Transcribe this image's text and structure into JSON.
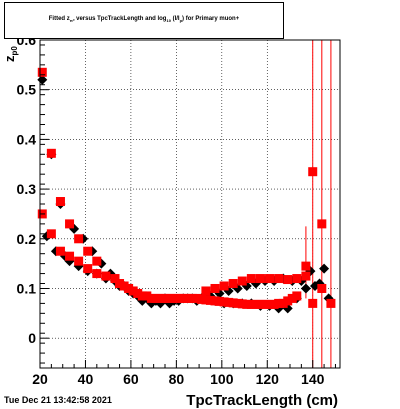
{
  "chart_data": {
    "type": "scatter",
    "title": "Fitted z_{p0} versus TpcTrackLength and log_{10}(I/I_p) for Primary muon+",
    "title_parts": {
      "pre": "Fitted  z",
      "sub1": "π⁰",
      "mid": "  versus TpcTrackLength and log",
      "sub2": "10",
      "post": " (I/I",
      "sub3": "p",
      "end": ") for Primary muon+"
    },
    "xlabel": "TpcTrackLength (cm)",
    "ylabel": "z",
    "ylabel_sub": "p0",
    "xlim": [
      20,
      152
    ],
    "ylim": [
      -0.06,
      0.6
    ],
    "x_ticks": [
      20,
      40,
      60,
      80,
      100,
      120,
      140
    ],
    "y_ticks": [
      0,
      0.1,
      0.2,
      0.3,
      0.4,
      0.5,
      0.6
    ],
    "y_tick_labels": [
      "0",
      "0.1",
      "0.2",
      "0.3",
      "0.4",
      "0.5",
      "0.6"
    ],
    "grid": true,
    "series": [
      {
        "color": "#000000",
        "marker": "diamond",
        "points": [
          [
            21,
            0.52
          ],
          [
            23,
            0.205
          ],
          [
            25,
            0.37
          ],
          [
            27,
            0.175
          ],
          [
            29,
            0.27
          ],
          [
            31,
            0.165
          ],
          [
            33,
            0.155
          ],
          [
            35,
            0.22
          ],
          [
            37,
            0.145
          ],
          [
            39,
            0.2
          ],
          [
            41,
            0.135
          ],
          [
            43,
            0.175
          ],
          [
            45,
            0.13
          ],
          [
            47,
            0.15
          ],
          [
            49,
            0.12
          ],
          [
            51,
            0.13
          ],
          [
            53,
            0.115
          ],
          [
            55,
            0.105
          ],
          [
            57,
            0.105
          ],
          [
            59,
            0.095
          ],
          [
            61,
            0.09
          ],
          [
            63,
            0.085
          ],
          [
            65,
            0.075
          ],
          [
            67,
            0.08
          ],
          [
            69,
            0.07
          ],
          [
            71,
            0.075
          ],
          [
            73,
            0.07
          ],
          [
            75,
            0.08
          ],
          [
            77,
            0.07
          ],
          [
            79,
            0.075
          ],
          [
            81,
            0.075
          ],
          [
            83,
            0.08
          ],
          [
            85,
            0.08
          ],
          [
            87,
            0.08
          ],
          [
            89,
            0.075
          ],
          [
            91,
            0.08
          ],
          [
            93,
            0.08
          ],
          [
            95,
            0.085
          ],
          [
            97,
            0.075
          ],
          [
            99,
            0.09
          ],
          [
            101,
            0.07
          ],
          [
            103,
            0.095
          ],
          [
            105,
            0.07
          ],
          [
            107,
            0.1
          ],
          [
            109,
            0.07
          ],
          [
            111,
            0.105
          ],
          [
            113,
            0.07
          ],
          [
            115,
            0.11
          ],
          [
            117,
            0.065
          ],
          [
            119,
            0.115
          ],
          [
            121,
            0.065
          ],
          [
            123,
            0.115
          ],
          [
            125,
            0.06
          ],
          [
            127,
            0.12
          ],
          [
            129,
            0.06
          ],
          [
            131,
            0.115
          ],
          [
            133,
            0.08
          ],
          [
            135,
            0.115
          ],
          [
            137,
            0.1
          ],
          [
            139,
            0.135
          ],
          [
            141,
            0.105
          ],
          [
            143,
            0.11
          ],
          [
            145,
            0.14
          ],
          [
            147,
            0.08
          ]
        ]
      },
      {
        "color": "#ff0000",
        "marker": "square",
        "points": [
          [
            21,
            0.535
          ],
          [
            21,
            0.25
          ],
          [
            25,
            0.21
          ],
          [
            25,
            0.372
          ],
          [
            29,
            0.275
          ],
          [
            29,
            0.175
          ],
          [
            33,
            0.23
          ],
          [
            33,
            0.165
          ],
          [
            37,
            0.2
          ],
          [
            37,
            0.155
          ],
          [
            41,
            0.175
          ],
          [
            41,
            0.14
          ],
          [
            45,
            0.155
          ],
          [
            45,
            0.13
          ],
          [
            49,
            0.125
          ],
          [
            53,
            0.12
          ],
          [
            55,
            0.11
          ],
          [
            57,
            0.105
          ],
          [
            59,
            0.1
          ],
          [
            61,
            0.095
          ],
          [
            63,
            0.09
          ],
          [
            65,
            0.085
          ],
          [
            67,
            0.085
          ],
          [
            69,
            0.08
          ],
          [
            71,
            0.08
          ],
          [
            73,
            0.08
          ],
          [
            75,
            0.08
          ],
          [
            77,
            0.08
          ],
          [
            79,
            0.08
          ],
          [
            81,
            0.08
          ],
          [
            83,
            0.08
          ],
          [
            85,
            0.08
          ],
          [
            87,
            0.08
          ],
          [
            89,
            0.08
          ],
          [
            91,
            0.078
          ],
          [
            93,
            0.095
          ],
          [
            93,
            0.077
          ],
          [
            95,
            0.076
          ],
          [
            97,
            0.1
          ],
          [
            97,
            0.075
          ],
          [
            99,
            0.074
          ],
          [
            101,
            0.105
          ],
          [
            101,
            0.073
          ],
          [
            103,
            0.072
          ],
          [
            105,
            0.11
          ],
          [
            105,
            0.071
          ],
          [
            107,
            0.07
          ],
          [
            109,
            0.115
          ],
          [
            109,
            0.069
          ],
          [
            111,
            0.068
          ],
          [
            113,
            0.12
          ],
          [
            113,
            0.068
          ],
          [
            115,
            0.068
          ],
          [
            117,
            0.12
          ],
          [
            117,
            0.068
          ],
          [
            119,
            0.068
          ],
          [
            121,
            0.12
          ],
          [
            121,
            0.068
          ],
          [
            123,
            0.068
          ],
          [
            125,
            0.12
          ],
          [
            125,
            0.07
          ],
          [
            127,
            0.07
          ],
          [
            129,
            0.118
          ],
          [
            129,
            0.075
          ],
          [
            131,
            0.08
          ],
          [
            133,
            0.12
          ],
          [
            133,
            0.085
          ],
          [
            137,
            0.145
          ],
          [
            137,
            0.125
          ],
          [
            140,
            0.335
          ],
          [
            140,
            0.07
          ],
          [
            144,
            0.23
          ],
          [
            144,
            0.1
          ],
          [
            148,
            0.07
          ]
        ]
      }
    ],
    "error_bars": [
      {
        "x": 137,
        "y_low": 0.08,
        "y_high": 0.225,
        "color": "#ff0000"
      },
      {
        "x": 140,
        "y_low": -0.06,
        "y_high": 0.6,
        "color": "#ff0000"
      },
      {
        "x": 144,
        "y_low": -0.06,
        "y_high": 0.6,
        "color": "#ff0000"
      },
      {
        "x": 148,
        "y_low": -0.06,
        "y_high": 0.6,
        "color": "#ff0000"
      }
    ]
  },
  "timestamp": "Tue Dec 21 13:42:58 2021"
}
